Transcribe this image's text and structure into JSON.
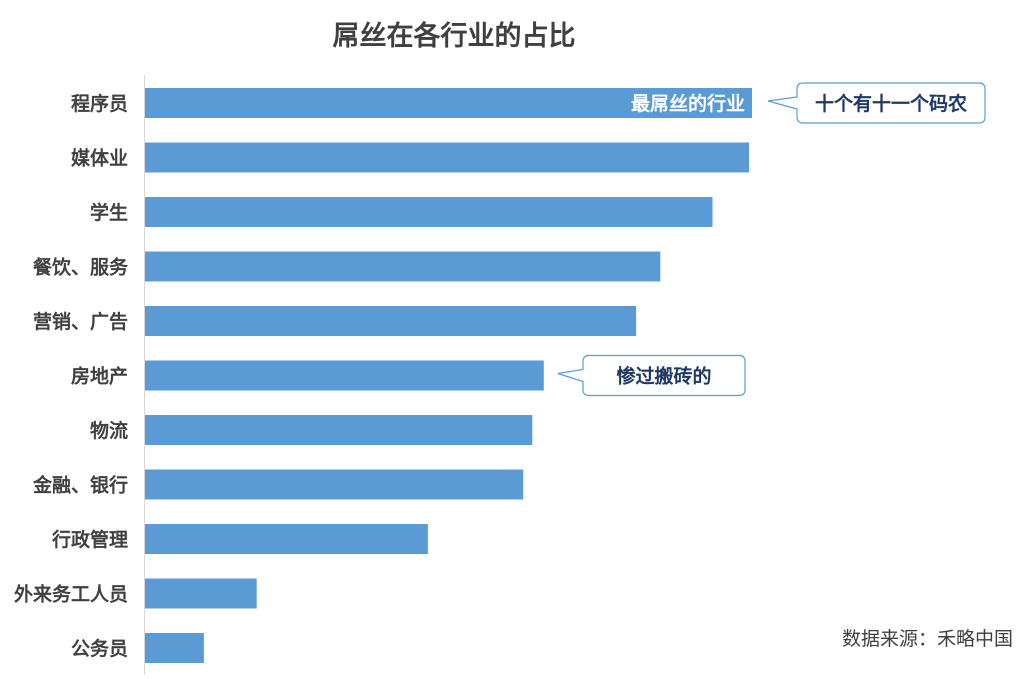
{
  "chart_data": {
    "type": "bar",
    "orientation": "horizontal",
    "title": "屌丝在各行业的占比",
    "categories": [
      "程序员",
      "媒体业",
      "学生",
      "餐饮、服务",
      "营销、广告",
      "房地产",
      "物流",
      "金融、银行",
      "行政管理",
      "外来务工人员",
      "公务员"
    ],
    "values": [
      100,
      99.5,
      93.5,
      84.9,
      80.9,
      65.7,
      63.8,
      62.3,
      46.6,
      18.4,
      9.7
    ],
    "xlim": [
      0,
      100
    ],
    "value_axis_visible": false,
    "grid": false,
    "bar_color": "#5b9bd5",
    "annotations": [
      {
        "category": "程序员",
        "text": "最屌丝的行业",
        "placement": "inside-bar-end"
      },
      {
        "category": "程序员",
        "text": "十个有十一个码农",
        "placement": "callout-right"
      },
      {
        "category": "房地产",
        "text": "惨过搬砖的",
        "placement": "callout-right"
      }
    ]
  },
  "source_note": "数据来源：禾略中国",
  "colors": {
    "bar": "#5b9bd5",
    "text": "#404040",
    "callout_border": "#5b9bd5",
    "callout_text": "#1f3864",
    "axis": "#d9d9d9"
  }
}
